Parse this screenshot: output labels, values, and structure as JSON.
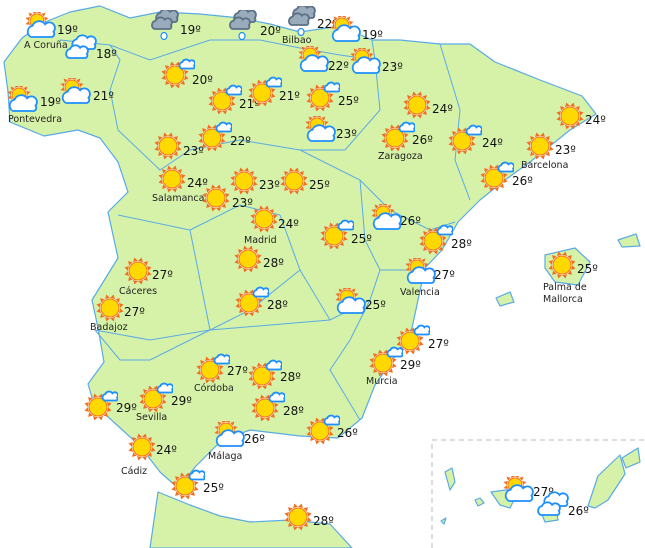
{
  "colors": {
    "land": "#d6f2a8",
    "border": "#5aaae6",
    "sun": "#ffd800",
    "sun_rays": "#f07020",
    "cloud_stroke": "#1e8fff",
    "rain_cloud": "#9aabbb"
  },
  "stations": [
    {
      "icon": "sun-behind-cloud",
      "temp": "19º",
      "city": "A Coruña"
    },
    {
      "icon": "cloudy",
      "temp": "18º",
      "city": ""
    },
    {
      "icon": "sun-behind-cloud",
      "temp": "19º",
      "city": "Pontevedra"
    },
    {
      "icon": "sun-behind-cloud",
      "temp": "21º",
      "city": ""
    },
    {
      "icon": "rain",
      "temp": "19º",
      "city": ""
    },
    {
      "icon": "rain",
      "temp": "20º",
      "city": ""
    },
    {
      "icon": "rain",
      "temp": "22º",
      "city": "Bilbao"
    },
    {
      "icon": "sun-behind-cloud",
      "temp": "19º",
      "city": ""
    },
    {
      "icon": "sun-small-cloud",
      "temp": "20º",
      "city": ""
    },
    {
      "icon": "sun-small-cloud",
      "temp": "21º",
      "city": ""
    },
    {
      "icon": "sun-small-cloud",
      "temp": "21º",
      "city": ""
    },
    {
      "icon": "sun-behind-cloud",
      "temp": "22º",
      "city": ""
    },
    {
      "icon": "sun-behind-cloud",
      "temp": "23º",
      "city": ""
    },
    {
      "icon": "sun-small-cloud",
      "temp": "25º",
      "city": ""
    },
    {
      "icon": "sun-behind-cloud",
      "temp": "23º",
      "city": ""
    },
    {
      "icon": "sun",
      "temp": "24º",
      "city": ""
    },
    {
      "icon": "sun-small-cloud",
      "temp": "26º",
      "city": "Zaragoza"
    },
    {
      "icon": "sun",
      "temp": "24º",
      "city": ""
    },
    {
      "icon": "sun-small-cloud",
      "temp": "24º",
      "city": ""
    },
    {
      "icon": "sun",
      "temp": "23º",
      "city": "Barcelona"
    },
    {
      "icon": "sun-small-cloud",
      "temp": "26º",
      "city": ""
    },
    {
      "icon": "sun",
      "temp": "23º",
      "city": ""
    },
    {
      "icon": "sun-small-cloud",
      "temp": "22º",
      "city": ""
    },
    {
      "icon": "sun",
      "temp": "24º",
      "city": "Salamanca"
    },
    {
      "icon": "sun",
      "temp": "23º",
      "city": ""
    },
    {
      "icon": "sun",
      "temp": "25º",
      "city": ""
    },
    {
      "icon": "sun",
      "temp": "23º",
      "city": ""
    },
    {
      "icon": "sun",
      "temp": "24º",
      "city": "Madrid"
    },
    {
      "icon": "sun-small-cloud",
      "temp": "25º",
      "city": ""
    },
    {
      "icon": "sun-behind-cloud",
      "temp": "26º",
      "city": ""
    },
    {
      "icon": "sun-small-cloud",
      "temp": "28º",
      "city": ""
    },
    {
      "icon": "sun",
      "temp": "25º",
      "city": "Palma de Mallorca"
    },
    {
      "icon": "sun",
      "temp": "27º",
      "city": "Cáceres"
    },
    {
      "icon": "sun",
      "temp": "28º",
      "city": ""
    },
    {
      "icon": "sun",
      "temp": "27º",
      "city": "Badajoz"
    },
    {
      "icon": "sun-small-cloud",
      "temp": "28º",
      "city": ""
    },
    {
      "icon": "sun-behind-cloud",
      "temp": "25º",
      "city": ""
    },
    {
      "icon": "sun-behind-cloud",
      "temp": "27º",
      "city": "Valencia"
    },
    {
      "icon": "sun-small-cloud",
      "temp": "27º",
      "city": ""
    },
    {
      "icon": "sun-small-cloud",
      "temp": "29º",
      "city": "Murcia"
    },
    {
      "icon": "sun-small-cloud",
      "temp": "27º",
      "city": "Córdoba"
    },
    {
      "icon": "sun-small-cloud",
      "temp": "28º",
      "city": ""
    },
    {
      "icon": "sun-small-cloud",
      "temp": "29º",
      "city": ""
    },
    {
      "icon": "sun-small-cloud",
      "temp": "29º",
      "city": "Sevilla"
    },
    {
      "icon": "sun-small-cloud",
      "temp": "28º",
      "city": ""
    },
    {
      "icon": "sun-behind-cloud",
      "temp": "26º",
      "city": "Málaga"
    },
    {
      "icon": "sun-small-cloud",
      "temp": "26º",
      "city": ""
    },
    {
      "icon": "sun",
      "temp": "24º",
      "city": "Cádiz"
    },
    {
      "icon": "sun-small-cloud",
      "temp": "25º",
      "city": ""
    },
    {
      "icon": "sun",
      "temp": "28º",
      "city": ""
    },
    {
      "icon": "sun-behind-cloud",
      "temp": "27º",
      "city": ""
    },
    {
      "icon": "cloudy",
      "temp": "26º",
      "city": ""
    }
  ]
}
